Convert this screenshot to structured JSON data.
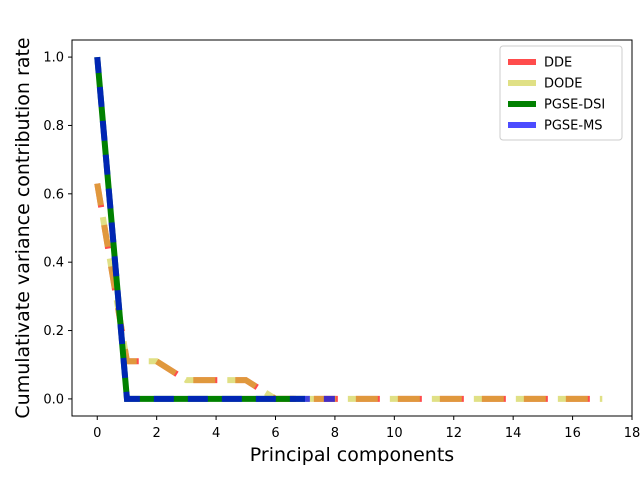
{
  "chart_data": {
    "type": "line",
    "title": "",
    "xlabel": "Principal components",
    "ylabel": "Cumulativate variance contribution rate",
    "xlim": [
      -0.85,
      18
    ],
    "ylim": [
      -0.05,
      1.05
    ],
    "x_ticks": [
      0,
      2,
      4,
      6,
      8,
      10,
      12,
      14,
      16,
      18
    ],
    "y_ticks": [
      0.0,
      0.2,
      0.4,
      0.6,
      0.8,
      1.0
    ],
    "grid": false,
    "legend_position": "top-right",
    "series": [
      {
        "name": "DDE",
        "color": "#ff0000",
        "alpha": 0.7,
        "dash": "24 18",
        "dash_offset": 0,
        "x": [
          0,
          1,
          2,
          3,
          4,
          5,
          6,
          7,
          8,
          9,
          10,
          11,
          12,
          13,
          14,
          15,
          16,
          17
        ],
        "y": [
          0.63,
          0.11,
          0.11,
          0.055,
          0.055,
          0.055,
          0.0,
          0.0,
          0.0,
          0.0,
          0.0,
          0.0,
          0.0,
          0.0,
          0.0,
          0.0,
          0.0,
          0.0
        ]
      },
      {
        "name": "DODE",
        "color": "#cccc33",
        "alpha": 0.6,
        "dash": "30 12",
        "dash_offset": 8,
        "x": [
          0,
          1,
          2,
          3,
          4,
          5,
          6,
          7,
          8,
          9,
          10,
          11,
          12,
          13,
          14,
          15,
          16,
          17
        ],
        "y": [
          0.63,
          0.11,
          0.11,
          0.055,
          0.055,
          0.055,
          0.0,
          0.0,
          0.0,
          0.0,
          0.0,
          0.0,
          0.0,
          0.0,
          0.0,
          0.0,
          0.0,
          0.0
        ]
      },
      {
        "name": "PGSE-DSI",
        "color": "#008000",
        "alpha": 1.0,
        "dash": "",
        "dash_offset": 0,
        "x": [
          0,
          1,
          2,
          3,
          4,
          5,
          6,
          7
        ],
        "y": [
          1.0,
          0.0,
          0.0,
          0.0,
          0.0,
          0.0,
          0.0,
          0.0
        ]
      },
      {
        "name": "PGSE-MS",
        "color": "#0000ff",
        "alpha": 0.7,
        "dash": "20 14",
        "dash_offset": 4,
        "x": [
          0,
          1,
          2,
          3,
          4,
          5,
          6,
          7,
          8
        ],
        "y": [
          1.0,
          0.0,
          0.0,
          0.0,
          0.0,
          0.0,
          0.0,
          0.0,
          0.0
        ]
      }
    ]
  }
}
